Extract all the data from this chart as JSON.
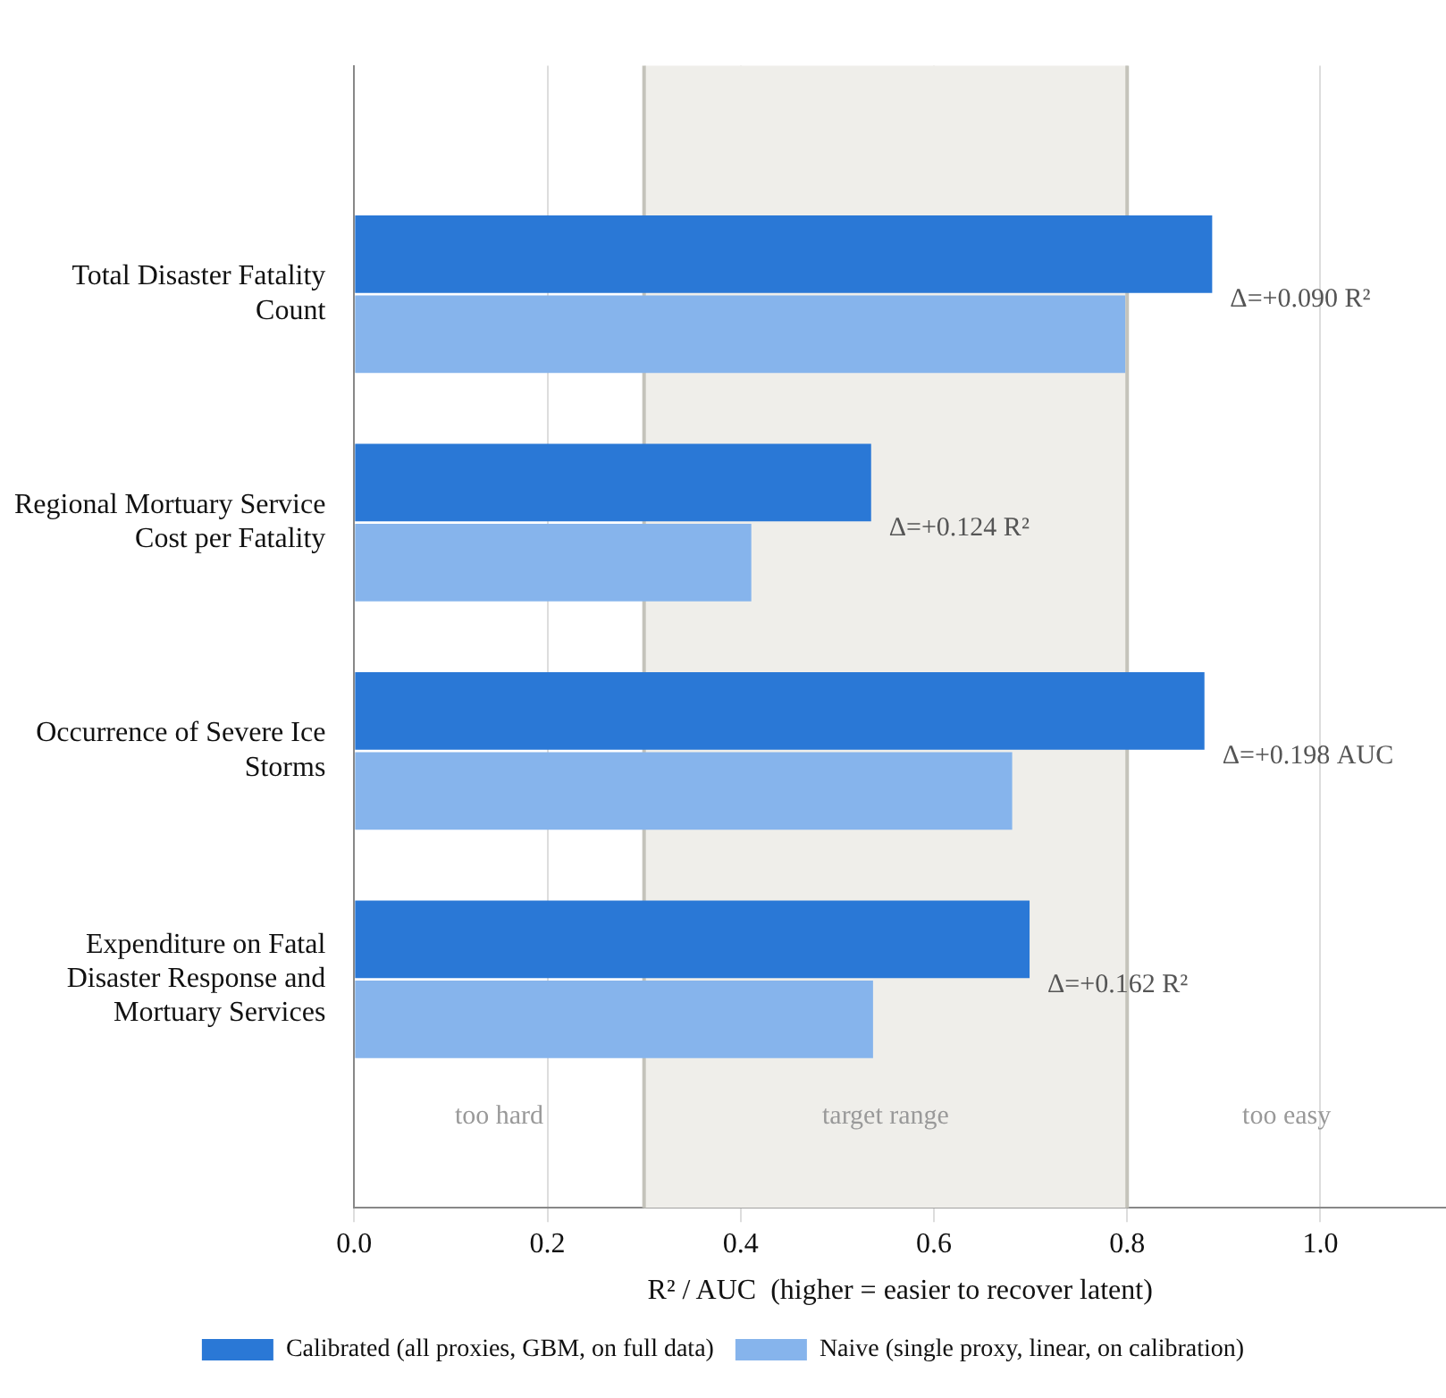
{
  "chart_data": {
    "type": "bar",
    "orientation": "horizontal",
    "xlabel": "R² / AUC  (higher = easier to recover latent)",
    "categories": [
      "Total Disaster Fatality Count",
      "Regional Mortuary Service Cost per Fatality",
      "Occurrence of Severe Ice Storms",
      "Expenditure on Fatal Disaster Response and Mortuary Services"
    ],
    "series": [
      {
        "name": "Calibrated (all proxies, GBM, on full data)",
        "color": "#2a78d6",
        "values": [
          0.888,
          0.535,
          0.88,
          0.699
        ]
      },
      {
        "name": "Naive (single proxy, linear, on calibration)",
        "color": "#86b4ec",
        "values": [
          0.798,
          0.411,
          0.681,
          0.537
        ]
      }
    ],
    "xlim": [
      0,
      1.13
    ],
    "xticks": [
      {
        "value": 0,
        "label": "0.0"
      },
      {
        "value": 0.2,
        "label": "0.2"
      },
      {
        "value": 0.4,
        "label": "0.4"
      },
      {
        "value": 0.6,
        "label": "0.6"
      },
      {
        "value": 0.8,
        "label": "0.8"
      },
      {
        "value": 1,
        "label": "1.0"
      }
    ],
    "grid": "x",
    "legend": "bottom",
    "bands": [
      {
        "axis": "x",
        "from": 0.3,
        "to": 0.8,
        "label": "target range",
        "color": "#efeeea"
      }
    ],
    "ref_lines": [
      {
        "axis": "x",
        "value": 0.3,
        "color": "#c4c3bb"
      },
      {
        "axis": "x",
        "value": 0.8,
        "color": "#c4c3bb"
      }
    ],
    "annotations": [
      {
        "text": "Δ=+0.090 R²",
        "x": 0.888,
        "y": "Total Disaster Fatality Count"
      },
      {
        "text": "Δ=+0.124 R²",
        "x": 0.535,
        "y": "Regional Mortuary Service Cost per Fatality"
      },
      {
        "text": "Δ=+0.198 AUC",
        "x": 0.88,
        "y": "Occurrence of Severe Ice Storms"
      },
      {
        "text": "Δ=+0.162 R²",
        "x": 0.699,
        "y": "Expenditure on Fatal Disaster Response and Mortuary Services"
      },
      "too hard",
      "too easy"
    ]
  }
}
